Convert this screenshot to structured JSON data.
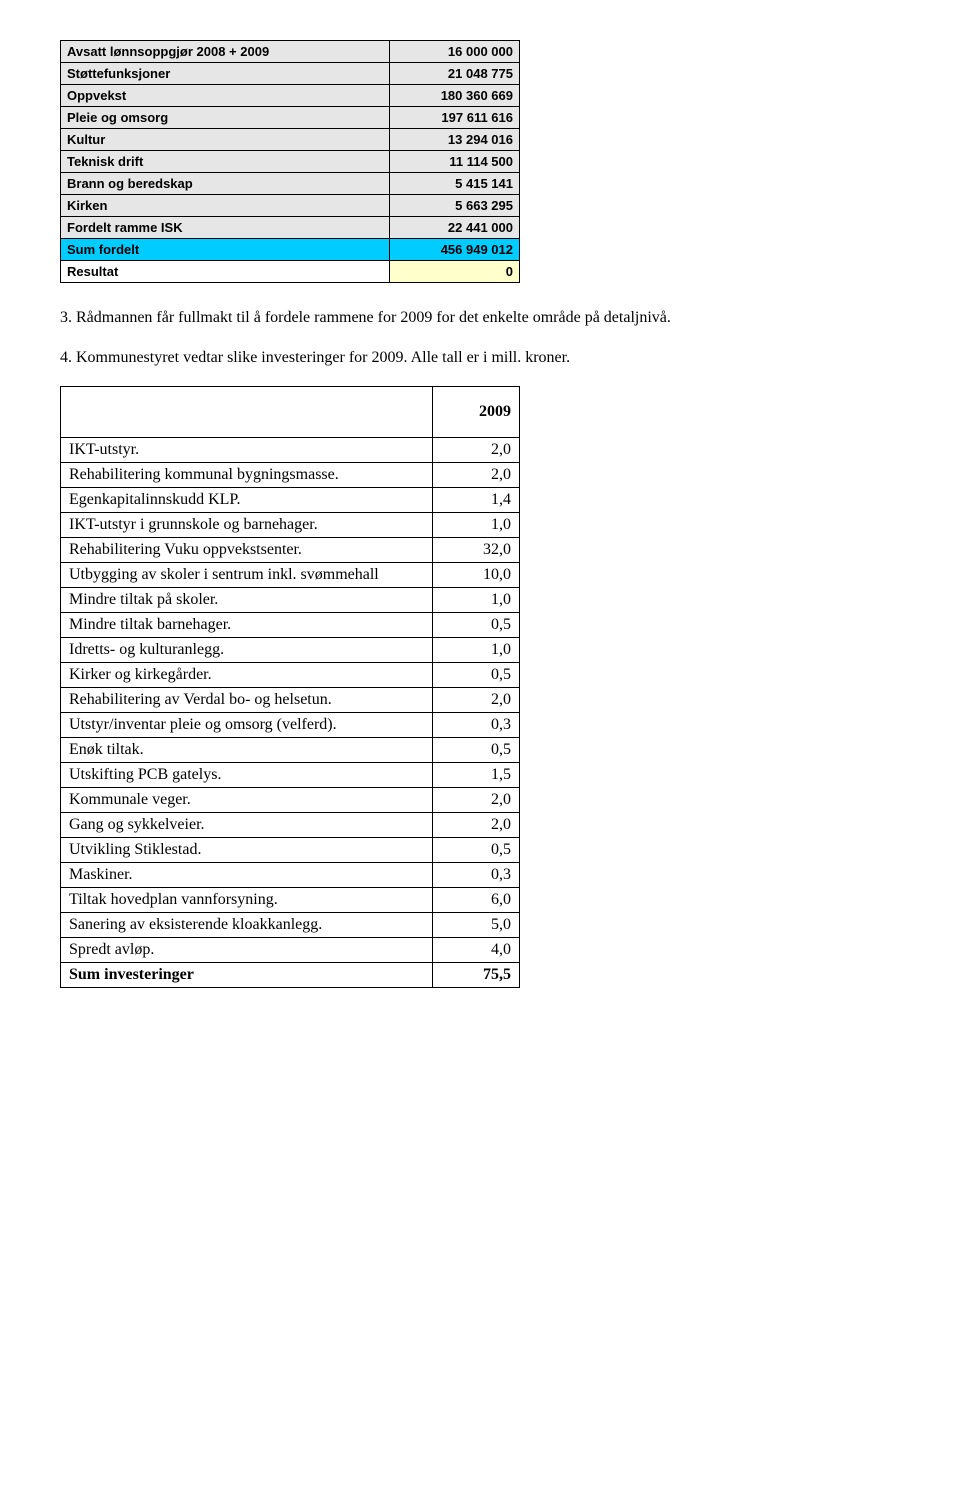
{
  "table1": {
    "rows": [
      {
        "label": "Avsatt lønnsoppgjør 2008 + 2009",
        "value": "16 000 000",
        "style": "gray"
      },
      {
        "label": "Støttefunksjoner",
        "value": "21 048 775",
        "style": "gray"
      },
      {
        "label": "Oppvekst",
        "value": "180 360 669",
        "style": "gray"
      },
      {
        "label": "Pleie og omsorg",
        "value": "197 611 616",
        "style": "gray"
      },
      {
        "label": "Kultur",
        "value": "13 294 016",
        "style": "gray"
      },
      {
        "label": "Teknisk drift",
        "value": "11 114 500",
        "style": "gray"
      },
      {
        "label": "Brann og beredskap",
        "value": "5 415 141",
        "style": "gray"
      },
      {
        "label": "Kirken",
        "value": "5 663 295",
        "style": "gray"
      },
      {
        "label": "Fordelt ramme ISK",
        "value": "22 441 000",
        "style": "gray"
      },
      {
        "label": "Sum fordelt",
        "value": "456 949 012",
        "style": "blue"
      },
      {
        "label": "Resultat",
        "value": "0",
        "style": "resultat"
      }
    ]
  },
  "point3": "3. Rådmannen får fullmakt til å fordele rammene for 2009 for det enkelte område på detaljnivå.",
  "point4": "4. Kommunestyret vedtar slike investeringer for 2009. Alle tall er i mill. kroner.",
  "table2": {
    "header": "2009",
    "rows": [
      {
        "label": "IKT-utstyr.",
        "value": "2,0"
      },
      {
        "label": "Rehabilitering kommunal bygningsmasse.",
        "value": "2,0"
      },
      {
        "label": "Egenkapitalinnskudd KLP.",
        "value": "1,4"
      },
      {
        "label": "IKT-utstyr i grunnskole og barnehager.",
        "value": "1,0"
      },
      {
        "label": "Rehabilitering Vuku oppvekstsenter.",
        "value": "32,0"
      },
      {
        "label": "Utbygging av skoler i sentrum inkl. svømmehall",
        "value": "10,0"
      },
      {
        "label": "Mindre tiltak på skoler.",
        "value": "1,0"
      },
      {
        "label": "Mindre tiltak barnehager.",
        "value": "0,5"
      },
      {
        "label": "Idretts- og kulturanlegg.",
        "value": "1,0"
      },
      {
        "label": "Kirker og kirkegårder.",
        "value": "0,5"
      },
      {
        "label": "Rehabilitering av Verdal bo- og helsetun.",
        "value": "2,0"
      },
      {
        "label": "Utstyr/inventar pleie og omsorg (velferd).",
        "value": "0,3"
      },
      {
        "label": "Enøk tiltak.",
        "value": "0,5"
      },
      {
        "label": "Utskifting PCB gatelys.",
        "value": "1,5"
      },
      {
        "label": "Kommunale veger.",
        "value": "2,0"
      },
      {
        "label": "Gang og sykkelveier.",
        "value": "2,0"
      },
      {
        "label": "Utvikling Stiklestad.",
        "value": "0,5"
      },
      {
        "label": "Maskiner.",
        "value": "0,3"
      },
      {
        "label": "Tiltak hovedplan vannforsyning.",
        "value": "6,0"
      },
      {
        "label": "Sanering av eksisterende kloakkanlegg.",
        "value": "5,0"
      },
      {
        "label": "Spredt avløp.",
        "value": "4,0"
      }
    ],
    "sumLabel": "Sum investeringer",
    "sumValue": "75,5"
  }
}
